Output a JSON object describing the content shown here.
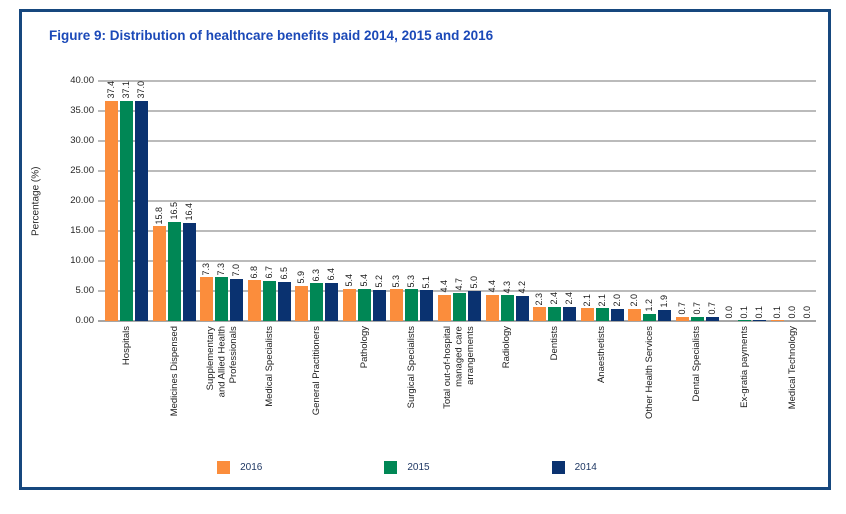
{
  "figure": {
    "title": "Figure 9: Distribution of healthcare benefits paid 2014, 2015 and 2016",
    "title_color": "#1B49B8",
    "border_color": "#16477E"
  },
  "chart_data": {
    "type": "bar",
    "title": "Figure 9: Distribution of healthcare benefits paid 2014, 2015 and 2016",
    "xlabel": "",
    "ylabel": "Percentage (%)",
    "ylim": [
      0,
      40
    ],
    "ytick_step": 5,
    "ytick_labels": [
      "0.00",
      "5.00",
      "10.00",
      "15.00",
      "20.00",
      "25.00",
      "30.00",
      "35.00",
      "40.00"
    ],
    "grid": true,
    "gridline_color": "#BBBBBB",
    "legend_position": "bottom",
    "value_labels": "one-decimal-rotated",
    "categories": [
      "Hospitals",
      "Medicines Dispensed",
      "Supplementary\nand Allied Health\nProfessionals",
      "Medical Specialists",
      "General Practitioners",
      "Pathology",
      "Surgical Specialists",
      "Total out-of-hospital\nmanaged care\narrangements",
      "Radiology",
      "Dentists",
      "Anaesthetists",
      "Other Health Services",
      "Dental Specialists",
      "Ex-gratia payments",
      "Medical Technology"
    ],
    "series": [
      {
        "name": "2016",
        "color": "#FB8D3C",
        "values": [
          37.4,
          15.8,
          7.3,
          6.8,
          5.9,
          5.4,
          5.3,
          4.4,
          4.4,
          2.3,
          2.1,
          2.0,
          0.7,
          0.0,
          0.1
        ]
      },
      {
        "name": "2015",
        "color": "#008755",
        "values": [
          37.1,
          16.5,
          7.3,
          6.7,
          6.3,
          5.4,
          5.3,
          4.7,
          4.3,
          2.4,
          2.1,
          1.2,
          0.7,
          0.1,
          0.0
        ]
      },
      {
        "name": "2014",
        "color": "#0A3270",
        "values": [
          37.0,
          16.4,
          7.0,
          6.5,
          6.4,
          5.2,
          5.1,
          5.0,
          4.2,
          2.4,
          2.0,
          1.9,
          0.7,
          0.1,
          0.0
        ]
      }
    ]
  }
}
